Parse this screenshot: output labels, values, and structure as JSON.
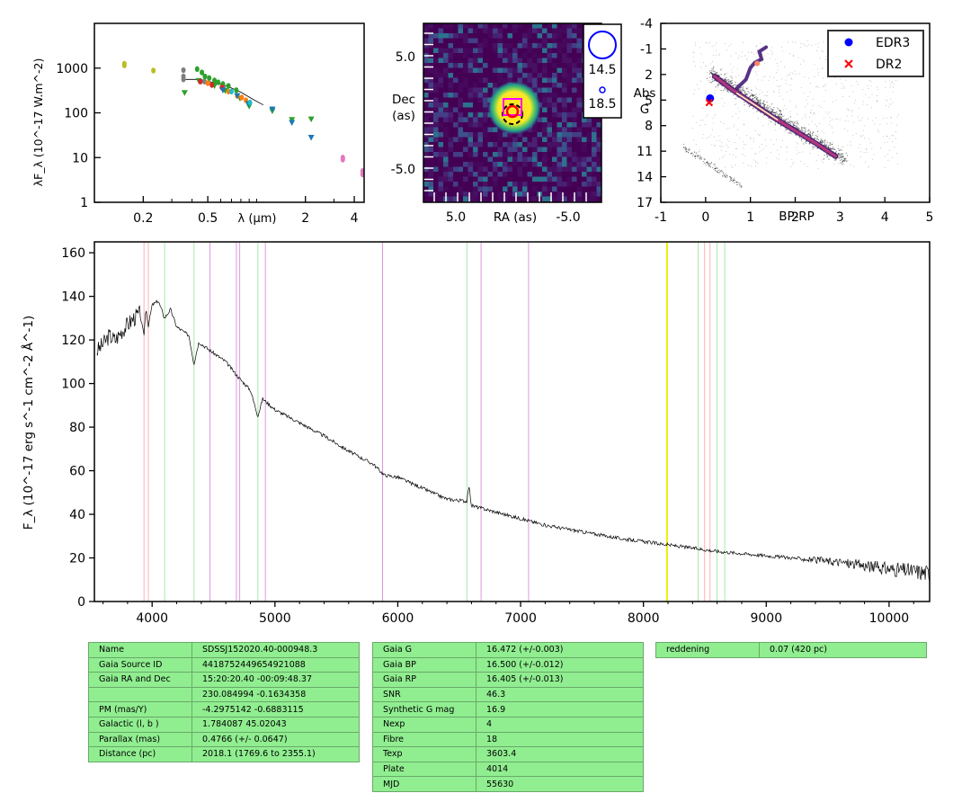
{
  "chart_data": [
    {
      "panel": "sed",
      "type": "scatter",
      "xlabel": "λ (μm)",
      "ylabel": "λF_λ (10^-17 W.m^-2)",
      "x_scale": "log",
      "y_scale": "log",
      "xlim": [
        0.1,
        4.6
      ],
      "ylim": [
        1,
        10000
      ],
      "x_ticks": [
        "0.2",
        "0.5",
        "2",
        "4"
      ],
      "y_ticks": [
        "1",
        "10",
        "100",
        "1000"
      ],
      "series": [
        {
          "color": "#bcbd22",
          "points": [
            [
              0.153,
              1250
            ],
            [
              0.153,
              1150
            ],
            [
              0.231,
              880
            ]
          ]
        },
        {
          "color": "#7f7f7f",
          "points": [
            [
              0.354,
              900
            ],
            [
              0.354,
              650
            ],
            [
              0.354,
              560
            ],
            [
              0.477,
              500
            ],
            [
              0.623,
              380
            ]
          ]
        },
        {
          "color": "#2ca02c",
          "marker": "triangle",
          "points": [
            [
              0.36,
              280
            ],
            [
              0.44,
              520
            ],
            [
              0.55,
              400
            ],
            [
              0.64,
              310
            ],
            [
              0.79,
              210
            ],
            [
              0.9,
              140
            ],
            [
              1.25,
              110
            ],
            [
              1.65,
              70
            ],
            [
              2.17,
              72
            ]
          ]
        },
        {
          "color": "#2ca02c",
          "points": [
            [
              0.43,
              950
            ],
            [
              0.46,
              800
            ],
            [
              0.48,
              650
            ],
            [
              0.51,
              600
            ],
            [
              0.55,
              530
            ],
            [
              0.58,
              480
            ],
            [
              0.62,
              440
            ],
            [
              0.67,
              400
            ],
            [
              0.75,
              320
            ]
          ]
        },
        {
          "color": "#d62728",
          "points": [
            [
              0.45,
              500
            ],
            [
              0.53,
              420
            ],
            [
              0.61,
              370
            ]
          ]
        },
        {
          "color": "#ff7f0e",
          "points": [
            [
              0.5,
              460
            ],
            [
              0.67,
              300
            ],
            [
              0.76,
              240
            ],
            [
              0.81,
              220
            ],
            [
              0.86,
              190
            ]
          ]
        },
        {
          "color": "#1f77b4",
          "marker": "triangle-down",
          "points": [
            [
              0.62,
              320
            ],
            [
              0.76,
              240
            ],
            [
              0.89,
              160
            ],
            [
              1.25,
              120
            ],
            [
              1.65,
              60
            ],
            [
              2.17,
              28
            ]
          ]
        },
        {
          "color": "#17becf",
          "points": [
            [
              0.7,
              300
            ],
            [
              0.91,
              170
            ]
          ]
        },
        {
          "color": "#e377c2",
          "points": [
            [
              3.4,
              10
            ],
            [
              3.4,
              9
            ],
            [
              4.5,
              5
            ],
            [
              4.5,
              4.2
            ]
          ]
        }
      ]
    },
    {
      "panel": "image",
      "type": "heatmap",
      "xlabel": "RA (as)",
      "ylabel": "Dec (as)",
      "x_ticks": [
        "5.0",
        "-5.0"
      ],
      "y_ticks": [
        "5.0",
        "-5.0"
      ],
      "legend_labels": [
        "14.5",
        "18.5"
      ]
    },
    {
      "panel": "hrd",
      "type": "scatter",
      "xlabel": "BP-RP",
      "ylabel": "Abs G",
      "xlim": [
        -1,
        5
      ],
      "ylim": [
        17,
        -4
      ],
      "x_ticks": [
        "-1",
        "0",
        "1",
        "2",
        "3",
        "4",
        "5"
      ],
      "y_ticks": [
        "-4",
        "-1",
        "2",
        "5",
        "8",
        "11",
        "14",
        "17"
      ],
      "series": [
        {
          "name": "EDR3",
          "color": "#0000ff",
          "marker": "circle",
          "points": [
            [
              0.1,
              4.8
            ]
          ]
        },
        {
          "name": "DR2",
          "color": "#ff0000",
          "marker": "x",
          "points": [
            [
              0.08,
              5.3
            ]
          ]
        }
      ]
    },
    {
      "panel": "spectrum",
      "type": "line",
      "xlabel": "",
      "ylabel": "F_λ (10^-17 erg s^-1 cm^-2 Å^-1)",
      "xlim": [
        3530,
        10330
      ],
      "ylim": [
        0,
        165
      ],
      "x_ticks": [
        "4000",
        "5000",
        "6000",
        "7000",
        "8000",
        "9000",
        "10000"
      ],
      "y_ticks": [
        "0",
        "20",
        "40",
        "60",
        "80",
        "100",
        "120",
        "140",
        "160"
      ],
      "series": [
        {
          "color": "#000000",
          "points": [
            [
              3550,
              115
            ],
            [
              3600,
              118
            ],
            [
              3650,
              122
            ],
            [
              3700,
              120
            ],
            [
              3750,
              124
            ],
            [
              3800,
              127
            ],
            [
              3850,
              130
            ],
            [
              3900,
              132
            ],
            [
              3933,
              122
            ],
            [
              3950,
              135
            ],
            [
              3968,
              126
            ],
            [
              4000,
              136
            ],
            [
              4050,
              138
            ],
            [
              4101,
              130
            ],
            [
              4150,
              134
            ],
            [
              4200,
              126
            ],
            [
              4250,
              124
            ],
            [
              4300,
              122
            ],
            [
              4340,
              109
            ],
            [
              4380,
              119
            ],
            [
              4450,
              116
            ],
            [
              4500,
              114
            ],
            [
              4600,
              110
            ],
            [
              4700,
              103
            ],
            [
              4800,
              97
            ],
            [
              4861,
              85
            ],
            [
              4900,
              93
            ],
            [
              5000,
              88
            ],
            [
              5200,
              82
            ],
            [
              5400,
              76
            ],
            [
              5600,
              69
            ],
            [
              5800,
              63
            ],
            [
              5890,
              58
            ],
            [
              6000,
              57
            ],
            [
              6200,
              52
            ],
            [
              6400,
              47
            ],
            [
              6563,
              46
            ],
            [
              6580,
              53
            ],
            [
              6600,
              44
            ],
            [
              6800,
              41
            ],
            [
              7000,
              38
            ],
            [
              7200,
              35
            ],
            [
              7400,
              33
            ],
            [
              7600,
              31
            ],
            [
              7800,
              29
            ],
            [
              8000,
              27.5
            ],
            [
              8200,
              26
            ],
            [
              8400,
              24.5
            ],
            [
              8600,
              23
            ],
            [
              8800,
              22
            ],
            [
              9000,
              21
            ],
            [
              9200,
              20
            ],
            [
              9400,
              19
            ],
            [
              9600,
              18
            ],
            [
              9800,
              16.5
            ],
            [
              10000,
              15
            ],
            [
              10200,
              14
            ],
            [
              10330,
              13
            ]
          ]
        }
      ],
      "vlines": [
        {
          "x": 3934,
          "color": "#ffb0b0"
        },
        {
          "x": 3969,
          "color": "#ffb0b0"
        },
        {
          "x": 4102,
          "color": "#a8e8a8"
        },
        {
          "x": 4341,
          "color": "#a8e8a8"
        },
        {
          "x": 4471,
          "color": "#dd99dd"
        },
        {
          "x": 4686,
          "color": "#dd99dd"
        },
        {
          "x": 4713,
          "color": "#dd99dd"
        },
        {
          "x": 4861,
          "color": "#a8e8a8"
        },
        {
          "x": 4922,
          "color": "#dd99dd"
        },
        {
          "x": 5876,
          "color": "#dd99dd"
        },
        {
          "x": 6563,
          "color": "#a8e8a8"
        },
        {
          "x": 6678,
          "color": "#dd99dd"
        },
        {
          "x": 7065,
          "color": "#dd99dd"
        },
        {
          "x": 8190,
          "color": "#eeee00"
        },
        {
          "x": 8195,
          "color": "#eeee00"
        },
        {
          "x": 8446,
          "color": "#a8e8a8"
        },
        {
          "x": 8498,
          "color": "#ffb0b0"
        },
        {
          "x": 8542,
          "color": "#ffb0b0"
        },
        {
          "x": 8598,
          "color": "#a8e8a8"
        },
        {
          "x": 8662,
          "color": "#a8e8a8"
        }
      ]
    }
  ],
  "tables": {
    "astrometry": [
      [
        "Name",
        "SDSSJ152020.40-000948.3"
      ],
      [
        "Gaia Source ID",
        "4418752449654921088"
      ],
      [
        "Gaia RA and Dec",
        "15:20:20.40    -00:09:48.37"
      ],
      [
        "",
        "230.084994    -0.1634358"
      ],
      [
        "PM (mas/Y)",
        "-4.2975142    -0.6883115"
      ],
      [
        "Galactic (l, b )",
        "1.784087    45.02043"
      ],
      [
        "Parallax (mas)",
        "0.4766 (+/- 0.0647)"
      ],
      [
        "Distance (pc)",
        "2018.1 (1769.6 to 2355.1)"
      ]
    ],
    "photometry": [
      [
        "Gaia G",
        "16.472 (+/-0.003)"
      ],
      [
        "Gaia BP",
        "16.500 (+/-0.012)"
      ],
      [
        "Gaia RP",
        "16.405 (+/-0.013)"
      ],
      [
        "SNR",
        "46.3"
      ],
      [
        "Synthetic G mag",
        "16.9"
      ],
      [
        "Nexp",
        "4"
      ],
      [
        "Fibre",
        "18"
      ],
      [
        "Texp",
        "3603.4"
      ],
      [
        "Plate",
        "4014"
      ],
      [
        "MJD",
        "55630"
      ]
    ],
    "extinction": [
      [
        "reddening",
        "0.07 (420 pc)"
      ]
    ]
  }
}
